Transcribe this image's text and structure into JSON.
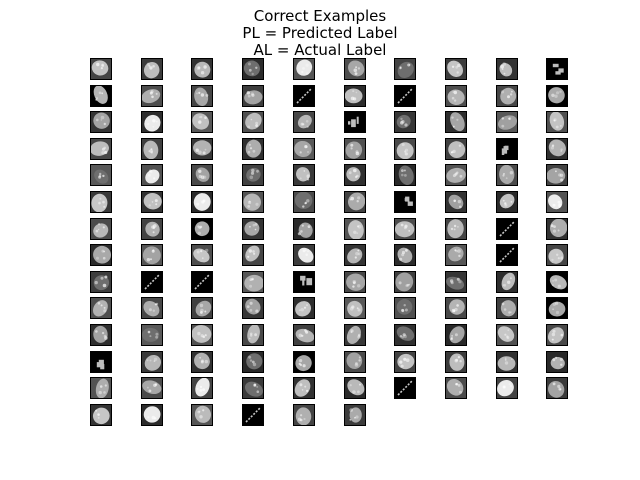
{
  "figure": {
    "title_line1": "Correct Examples",
    "title_line2": "PL = Predicted Label",
    "title_line3": "AL = Actual Label"
  },
  "grid": {
    "columns": 10,
    "rows": 14,
    "cells": [
      "nucleus-bright",
      "nucleus",
      "nucleus",
      "nucleus-dark",
      "nucleus-white",
      "nucleus",
      "nucleus-dark",
      "nucleus",
      "nucleus",
      "fragments",
      "nucleus-sparse",
      "nucleus",
      "nucleus",
      "nucleus",
      "streak",
      "nucleus",
      "streak",
      "nucleus",
      "nucleus",
      "nucleus-sparse",
      "nucleus",
      "nucleus-white",
      "nucleus",
      "nucleus",
      "nucleus",
      "fragments",
      "nucleus-dark",
      "nucleus",
      "nucleus",
      "nucleus",
      "nucleus",
      "nucleus",
      "nucleus",
      "nucleus",
      "nucleus",
      "nucleus",
      "nucleus",
      "nucleus",
      "fragments",
      "nucleus",
      "nucleus-dark",
      "nucleus-white",
      "nucleus",
      "nucleus-dark",
      "nucleus",
      "nucleus",
      "nucleus-dark",
      "nucleus",
      "nucleus",
      "nucleus",
      "nucleus",
      "nucleus",
      "nucleus-white",
      "nucleus",
      "nucleus-dark",
      "nucleus",
      "fragments",
      "nucleus",
      "nucleus",
      "nucleus-white",
      "nucleus",
      "nucleus",
      "nucleus-sparse",
      "nucleus",
      "nucleus",
      "nucleus",
      "nucleus",
      "nucleus",
      "streak",
      "nucleus",
      "nucleus",
      "nucleus",
      "nucleus",
      "nucleus",
      "nucleus-white",
      "nucleus",
      "nucleus",
      "nucleus",
      "streak",
      "nucleus",
      "nucleus-dark",
      "streak",
      "streak",
      "nucleus",
      "fragments",
      "nucleus",
      "nucleus",
      "nucleus-dark",
      "nucleus",
      "nucleus-sparse",
      "nucleus",
      "nucleus",
      "nucleus",
      "nucleus",
      "nucleus",
      "nucleus",
      "nucleus-dark",
      "nucleus",
      "nucleus",
      "nucleus-sparse",
      "nucleus",
      "nucleus-dark",
      "nucleus",
      "nucleus",
      "nucleus",
      "nucleus",
      "nucleus-dark",
      "nucleus",
      "nucleus",
      "nucleus",
      "fragments",
      "nucleus",
      "nucleus",
      "nucleus-dark",
      "nucleus-sparse",
      "nucleus",
      "nucleus",
      "nucleus",
      "nucleus",
      "nucleus",
      "nucleus",
      "nucleus",
      "nucleus-white",
      "nucleus-dark",
      "nucleus",
      "nucleus",
      "streak",
      "nucleus",
      "nucleus-white",
      "nucleus",
      "nucleus",
      "nucleus-white",
      "nucleus",
      "streak",
      "nucleus",
      "nucleus",
      null,
      null,
      null,
      null
    ]
  }
}
